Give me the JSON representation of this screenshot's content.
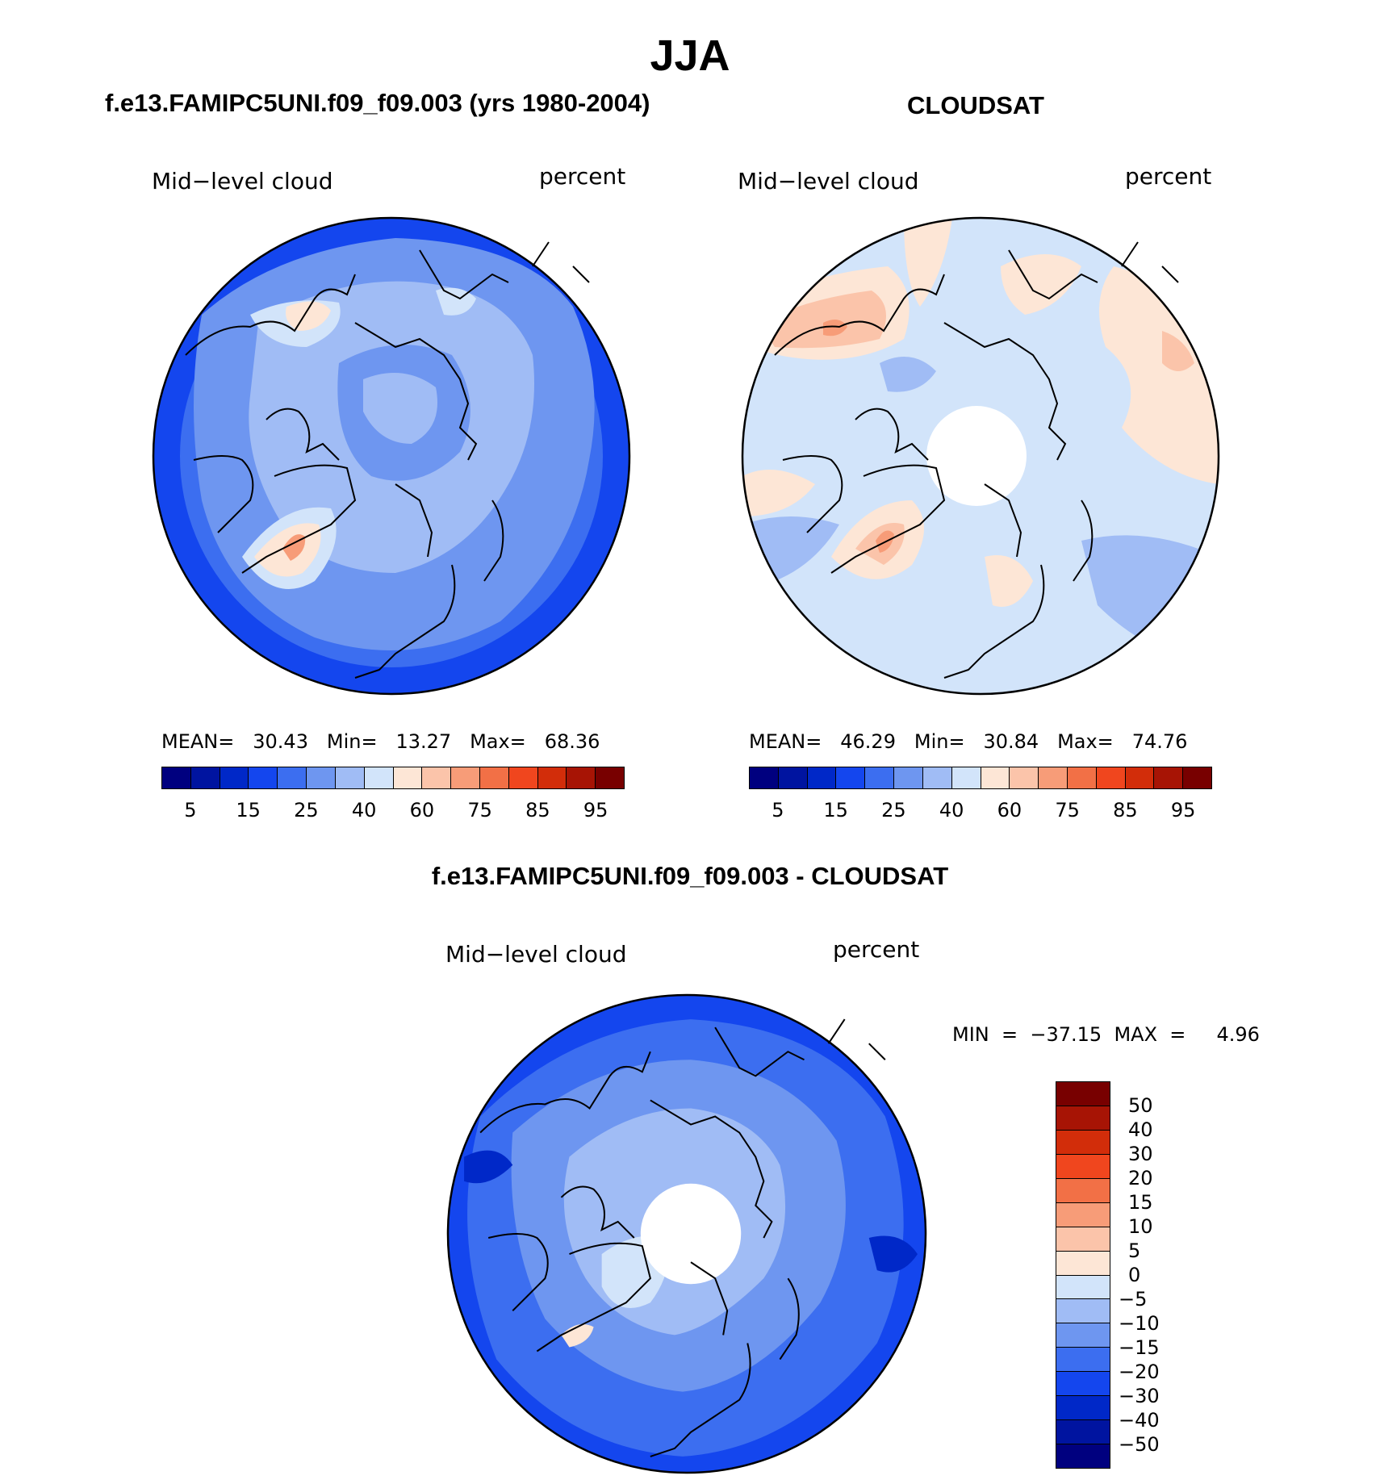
{
  "title": "JJA",
  "panel_left": {
    "title": "f.e13.FAMIPC5UNI.f09_f09.003 (yrs 1980-2004)",
    "variable": "Mid−level cloud",
    "units": "percent",
    "stats": {
      "mean_label": "MEAN=",
      "mean": "30.43",
      "min_label": "Min=",
      "min": "13.27",
      "max_label": "Max=",
      "max": "68.36"
    }
  },
  "panel_right": {
    "title": "CLOUDSAT",
    "variable": "Mid−level cloud",
    "units": "percent",
    "stats": {
      "mean_label": "MEAN=",
      "mean": "46.29",
      "min_label": "Min=",
      "min": "30.84",
      "max_label": "Max=",
      "max": "74.76"
    }
  },
  "panel_diff": {
    "title": "f.e13.FAMIPC5UNI.f09_f09.003 - CLOUDSAT",
    "variable": "Mid−level cloud",
    "units": "percent",
    "minmax_text": "MIN  =  −37.15  MAX  =     4.96"
  },
  "colorbar_abs": {
    "colors": [
      "#00007f",
      "#0014a0",
      "#0028c8",
      "#1446ee",
      "#3c6ef0",
      "#6e96f0",
      "#a0bcf5",
      "#d2e4fa",
      "#fde6d6",
      "#fbc4aa",
      "#f79c78",
      "#f27046",
      "#f0461e",
      "#d22d0a",
      "#a71405",
      "#780000"
    ],
    "ticks": [
      "5",
      "15",
      "25",
      "40",
      "60",
      "75",
      "85",
      "95"
    ]
  },
  "colorbar_diff": {
    "colors": [
      "#780000",
      "#a71405",
      "#d22d0a",
      "#f0461e",
      "#f27046",
      "#f79c78",
      "#fbc4aa",
      "#fde6d6",
      "#d2e4fa",
      "#a0bcf5",
      "#6e96f0",
      "#3c6ef0",
      "#1446ee",
      "#0028c8",
      "#0014a0",
      "#00007f"
    ],
    "ticks": [
      "50",
      "40",
      "30",
      "20",
      "15",
      "10",
      "5",
      "0",
      "−5",
      "−10",
      "−15",
      "−20",
      "−30",
      "−40",
      "−50"
    ]
  },
  "map_colors": {
    "deep_blue": "#1446ee",
    "blue": "#3c6ef0",
    "mid_blue": "#6e96f0",
    "light_blue": "#a0bcf5",
    "pale_blue": "#d2e4fa",
    "pale_peach": "#fde6d6",
    "peach": "#fbc4aa",
    "salmon": "#f79c78",
    "navy": "#0028c8"
  }
}
